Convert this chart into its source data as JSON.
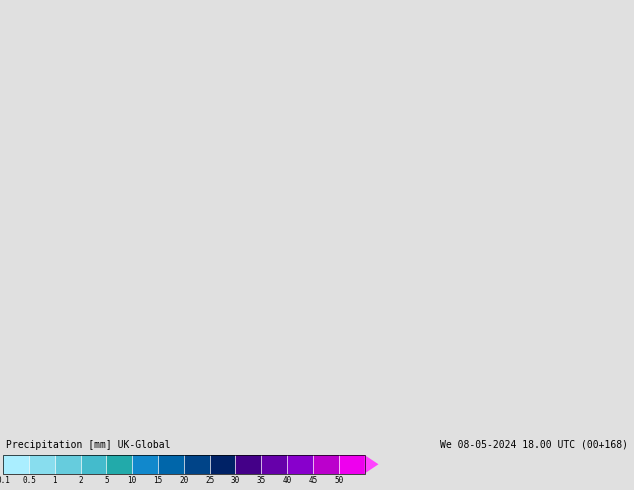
{
  "title_left": "Precipitation [mm] UK-Global",
  "title_right": "We 08-05-2024 18.00 UTC (00+168)",
  "colorbar_label_values": [
    "0.1",
    "0.5",
    "1",
    "2",
    "5",
    "10",
    "15",
    "20",
    "25",
    "30",
    "35",
    "40",
    "45",
    "50"
  ],
  "colorbar_colors": [
    "#aaeeff",
    "#88ddee",
    "#66ccdd",
    "#44bbcc",
    "#22aaaa",
    "#1188cc",
    "#0066aa",
    "#004488",
    "#002266",
    "#440088",
    "#6600aa",
    "#8800cc",
    "#bb00cc",
    "#ee00ee",
    "#ff44ff"
  ],
  "land_color": "#aaffaa",
  "sea_color": "#e0e0e0",
  "border_color": "#888888",
  "background_color": "#e0e0e0",
  "lon_min": -7.5,
  "lon_max": 16.5,
  "lat_min": 47.0,
  "lat_max": 59.5,
  "fig_width": 6.34,
  "fig_height": 4.9,
  "dpi": 100
}
